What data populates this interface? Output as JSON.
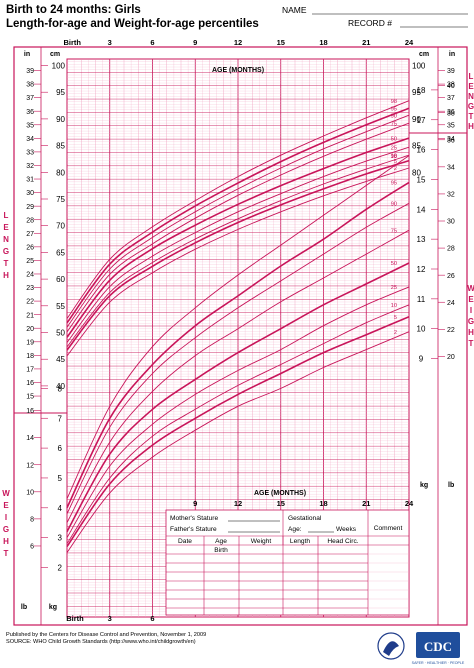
{
  "header": {
    "title_line1": "Birth to 24 months: Girls",
    "title_line2": "Length-for-age and Weight-for-age percentiles",
    "name_label": "NAME",
    "record_label": "RECORD #"
  },
  "colors": {
    "accent": "#c8155a",
    "grid": "#f2a6c4",
    "ink": "#000000"
  },
  "chart_data": [
    {
      "type": "line",
      "title": "Length-for-age",
      "xlabel": "AGE (MONTHS)",
      "ylabel": "LENGTH",
      "x_ticks": [
        "Birth",
        "3",
        "6",
        "9",
        "12",
        "15",
        "18",
        "21",
        "24"
      ],
      "x_tick_values": [
        0,
        3,
        6,
        9,
        12,
        15,
        18,
        21,
        24
      ],
      "xlim": [
        0,
        24
      ],
      "ylim_cm": [
        38,
        100
      ],
      "y_ticks_cm_left": [
        40,
        45,
        50,
        55,
        60,
        65,
        70,
        75,
        80,
        85,
        90,
        95,
        100
      ],
      "y_ticks_cm_right": [
        80,
        85,
        90,
        95,
        100
      ],
      "y_ticks_in_left": [
        15,
        16,
        17,
        18,
        19,
        20,
        21,
        22,
        23,
        24,
        25,
        26,
        27,
        28,
        29,
        30,
        31,
        32,
        33,
        34,
        35,
        36,
        37,
        38,
        39
      ],
      "y_ticks_in_right": [
        34,
        35,
        36,
        37,
        38,
        39
      ],
      "unit_left_in": "in",
      "unit_left_cm": "cm",
      "unit_right_cm": "cm",
      "unit_right_in": "in",
      "x": [
        0,
        3,
        6,
        9,
        12,
        15,
        18,
        21,
        24
      ],
      "series": [
        {
          "name": "98",
          "values": [
            52.6,
            63.7,
            69.8,
            74.7,
            79.2,
            83.2,
            86.8,
            90.2,
            93.4
          ]
        },
        {
          "name": "95",
          "values": [
            51.8,
            62.8,
            68.8,
            73.7,
            78.0,
            82.0,
            85.6,
            88.9,
            92.0
          ]
        },
        {
          "name": "90",
          "values": [
            51.0,
            61.9,
            67.8,
            72.6,
            76.9,
            80.8,
            84.4,
            87.6,
            90.7
          ]
        },
        {
          "name": "75",
          "values": [
            50.1,
            60.9,
            66.6,
            71.4,
            75.7,
            79.5,
            83.0,
            86.2,
            89.2
          ]
        },
        {
          "name": "50",
          "values": [
            49.1,
            59.8,
            65.7,
            70.1,
            74.0,
            77.5,
            80.7,
            83.7,
            86.4
          ]
        },
        {
          "name": "25",
          "values": [
            48.1,
            58.6,
            64.3,
            68.7,
            72.6,
            76.0,
            79.2,
            82.1,
            84.7
          ]
        },
        {
          "name": "10",
          "values": [
            47.3,
            57.5,
            63.1,
            67.5,
            71.3,
            74.7,
            77.8,
            80.6,
            83.2
          ]
        },
        {
          "name": "5",
          "values": [
            46.7,
            56.9,
            62.4,
            66.8,
            70.6,
            73.9,
            76.9,
            79.7,
            82.2
          ]
        },
        {
          "name": "2",
          "values": [
            45.6,
            55.7,
            61.2,
            65.6,
            69.3,
            72.6,
            75.6,
            78.3,
            80.8
          ]
        }
      ]
    },
    {
      "type": "line",
      "title": "Weight-for-age",
      "xlabel": "AGE (MONTHS)",
      "ylabel": "WEIGHT",
      "x_ticks": [
        "Birth",
        "3",
        "6",
        "9",
        "12",
        "15",
        "18",
        "21",
        "24"
      ],
      "x_tick_values": [
        0,
        3,
        6,
        9,
        12,
        15,
        18,
        21,
        24
      ],
      "xlim": [
        0,
        24
      ],
      "ylim_kg": [
        1.5,
        18.5
      ],
      "y_ticks_kg_right": [
        9,
        10,
        11,
        12,
        13,
        14,
        15,
        16,
        17,
        18
      ],
      "y_ticks_lb_right": [
        20,
        22,
        24,
        26,
        28,
        30,
        32,
        34,
        36,
        38,
        40
      ],
      "y_ticks_kg_left": [
        2,
        3,
        4,
        5,
        6,
        7,
        8
      ],
      "y_ticks_lb_left": [
        6,
        8,
        10,
        12,
        14,
        16
      ],
      "unit_kg": "kg",
      "unit_lb": "lb",
      "x": [
        0,
        3,
        6,
        9,
        12,
        15,
        18,
        21,
        24
      ],
      "series": [
        {
          "name": "98",
          "values": [
            4.3,
            7.4,
            9.4,
            10.7,
            11.8,
            12.8,
            13.8,
            14.8,
            15.8
          ]
        },
        {
          "name": "95",
          "values": [
            4.0,
            7.0,
            8.8,
            10.1,
            11.1,
            12.1,
            13.0,
            14.0,
            14.9
          ]
        },
        {
          "name": "90",
          "values": [
            3.8,
            6.7,
            8.5,
            9.7,
            10.7,
            11.6,
            12.5,
            13.4,
            14.2
          ]
        },
        {
          "name": "75",
          "values": [
            3.5,
            6.2,
            7.9,
            9.1,
            10.0,
            10.9,
            11.7,
            12.5,
            13.3
          ]
        },
        {
          "name": "50",
          "values": [
            3.2,
            5.8,
            7.3,
            8.3,
            9.2,
            10.0,
            10.8,
            11.5,
            12.2
          ]
        },
        {
          "name": "25",
          "values": [
            3.0,
            5.4,
            6.8,
            7.8,
            8.6,
            9.3,
            10.1,
            10.8,
            11.4
          ]
        },
        {
          "name": "10",
          "values": [
            2.8,
            5.0,
            6.4,
            7.3,
            8.1,
            8.8,
            9.5,
            10.2,
            10.8
          ]
        },
        {
          "name": "5",
          "values": [
            2.7,
            4.8,
            6.1,
            7.0,
            7.8,
            8.5,
            9.2,
            9.8,
            10.4
          ]
        },
        {
          "name": "2",
          "values": [
            2.5,
            4.5,
            5.7,
            6.6,
            7.4,
            8.0,
            8.7,
            9.3,
            9.9
          ]
        }
      ]
    }
  ],
  "record_table": {
    "mothers_stature": "Mother's Stature",
    "fathers_stature": "Father's Stature",
    "gestational": "Gestational",
    "age_label": "Age:",
    "weeks_label": "Weeks",
    "comment": "Comment",
    "columns": [
      "Date",
      "Age",
      "Weight",
      "Length",
      "Head Circ."
    ],
    "first_row_age": "Birth"
  },
  "side_labels": {
    "length_left": [
      "L",
      "E",
      "N",
      "G",
      "T",
      "H"
    ],
    "weight_left": [
      "W",
      "E",
      "I",
      "G",
      "H",
      "T"
    ],
    "length_right": [
      "L",
      "E",
      "N",
      "G",
      "T",
      "H"
    ],
    "weight_right": [
      "W",
      "E",
      "I",
      "G",
      "H",
      "T"
    ]
  },
  "footer": {
    "line1": "Published by the Centers for Disease Control and Prevention, November 1, 2009",
    "line2": "SOURCE:  WHO Child Growth Standards (http://www.who.int/childgrowth/en)",
    "logo_text": "CDC",
    "logo_sub": "SAFER · HEALTHIER · PEOPLE"
  }
}
